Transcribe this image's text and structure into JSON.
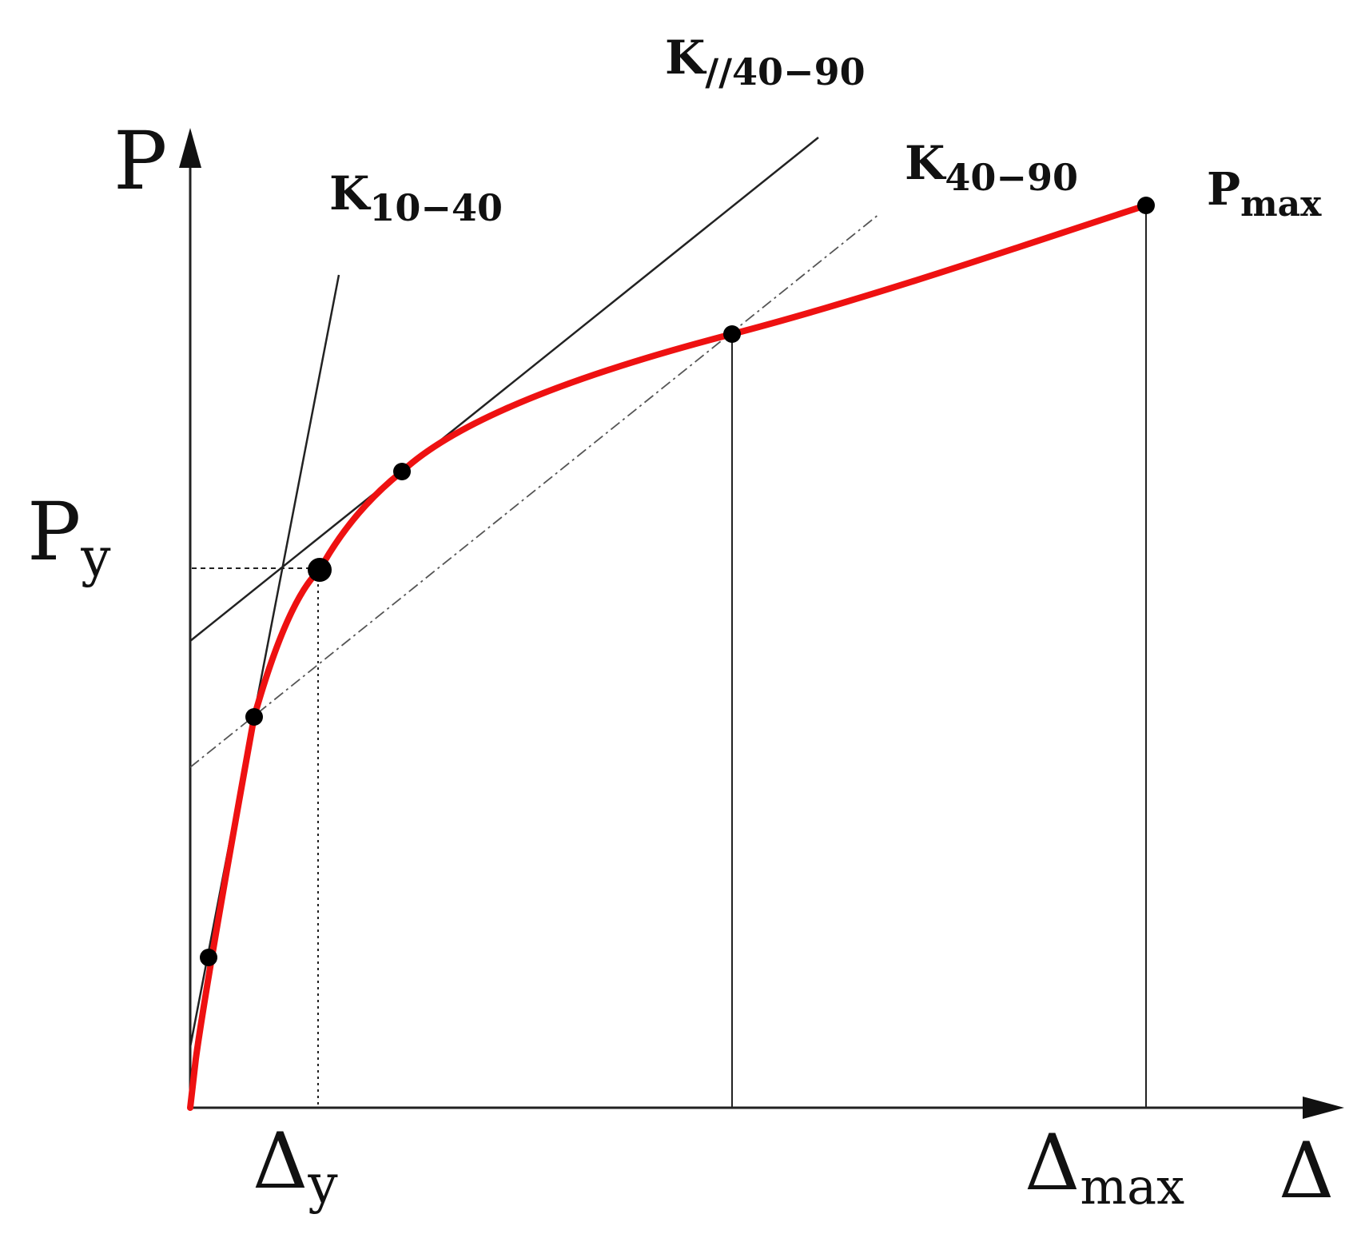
{
  "diagram": {
    "type": "load-displacement curve",
    "colors": {
      "curve": "#ee1111",
      "lines": "#222222",
      "dashed_secant": "#555555",
      "points": "#000000"
    },
    "labels": {
      "p_axis": "P",
      "delta_axis": "Δ",
      "p_yield": {
        "main": "P",
        "sub": "y"
      },
      "delta_yield": {
        "main": "Δ",
        "sub": "y"
      },
      "delta_max": {
        "main": "Δ",
        "sub": "max"
      },
      "p_max": {
        "main": "P",
        "sub": "max"
      },
      "k_10_40": {
        "main": "K",
        "sub": "10−40"
      },
      "k_40_90": {
        "main": "K",
        "sub": "40−90"
      },
      "k_parallel_40_90": {
        "main": "K",
        "sub": "//40−90"
      }
    }
  }
}
